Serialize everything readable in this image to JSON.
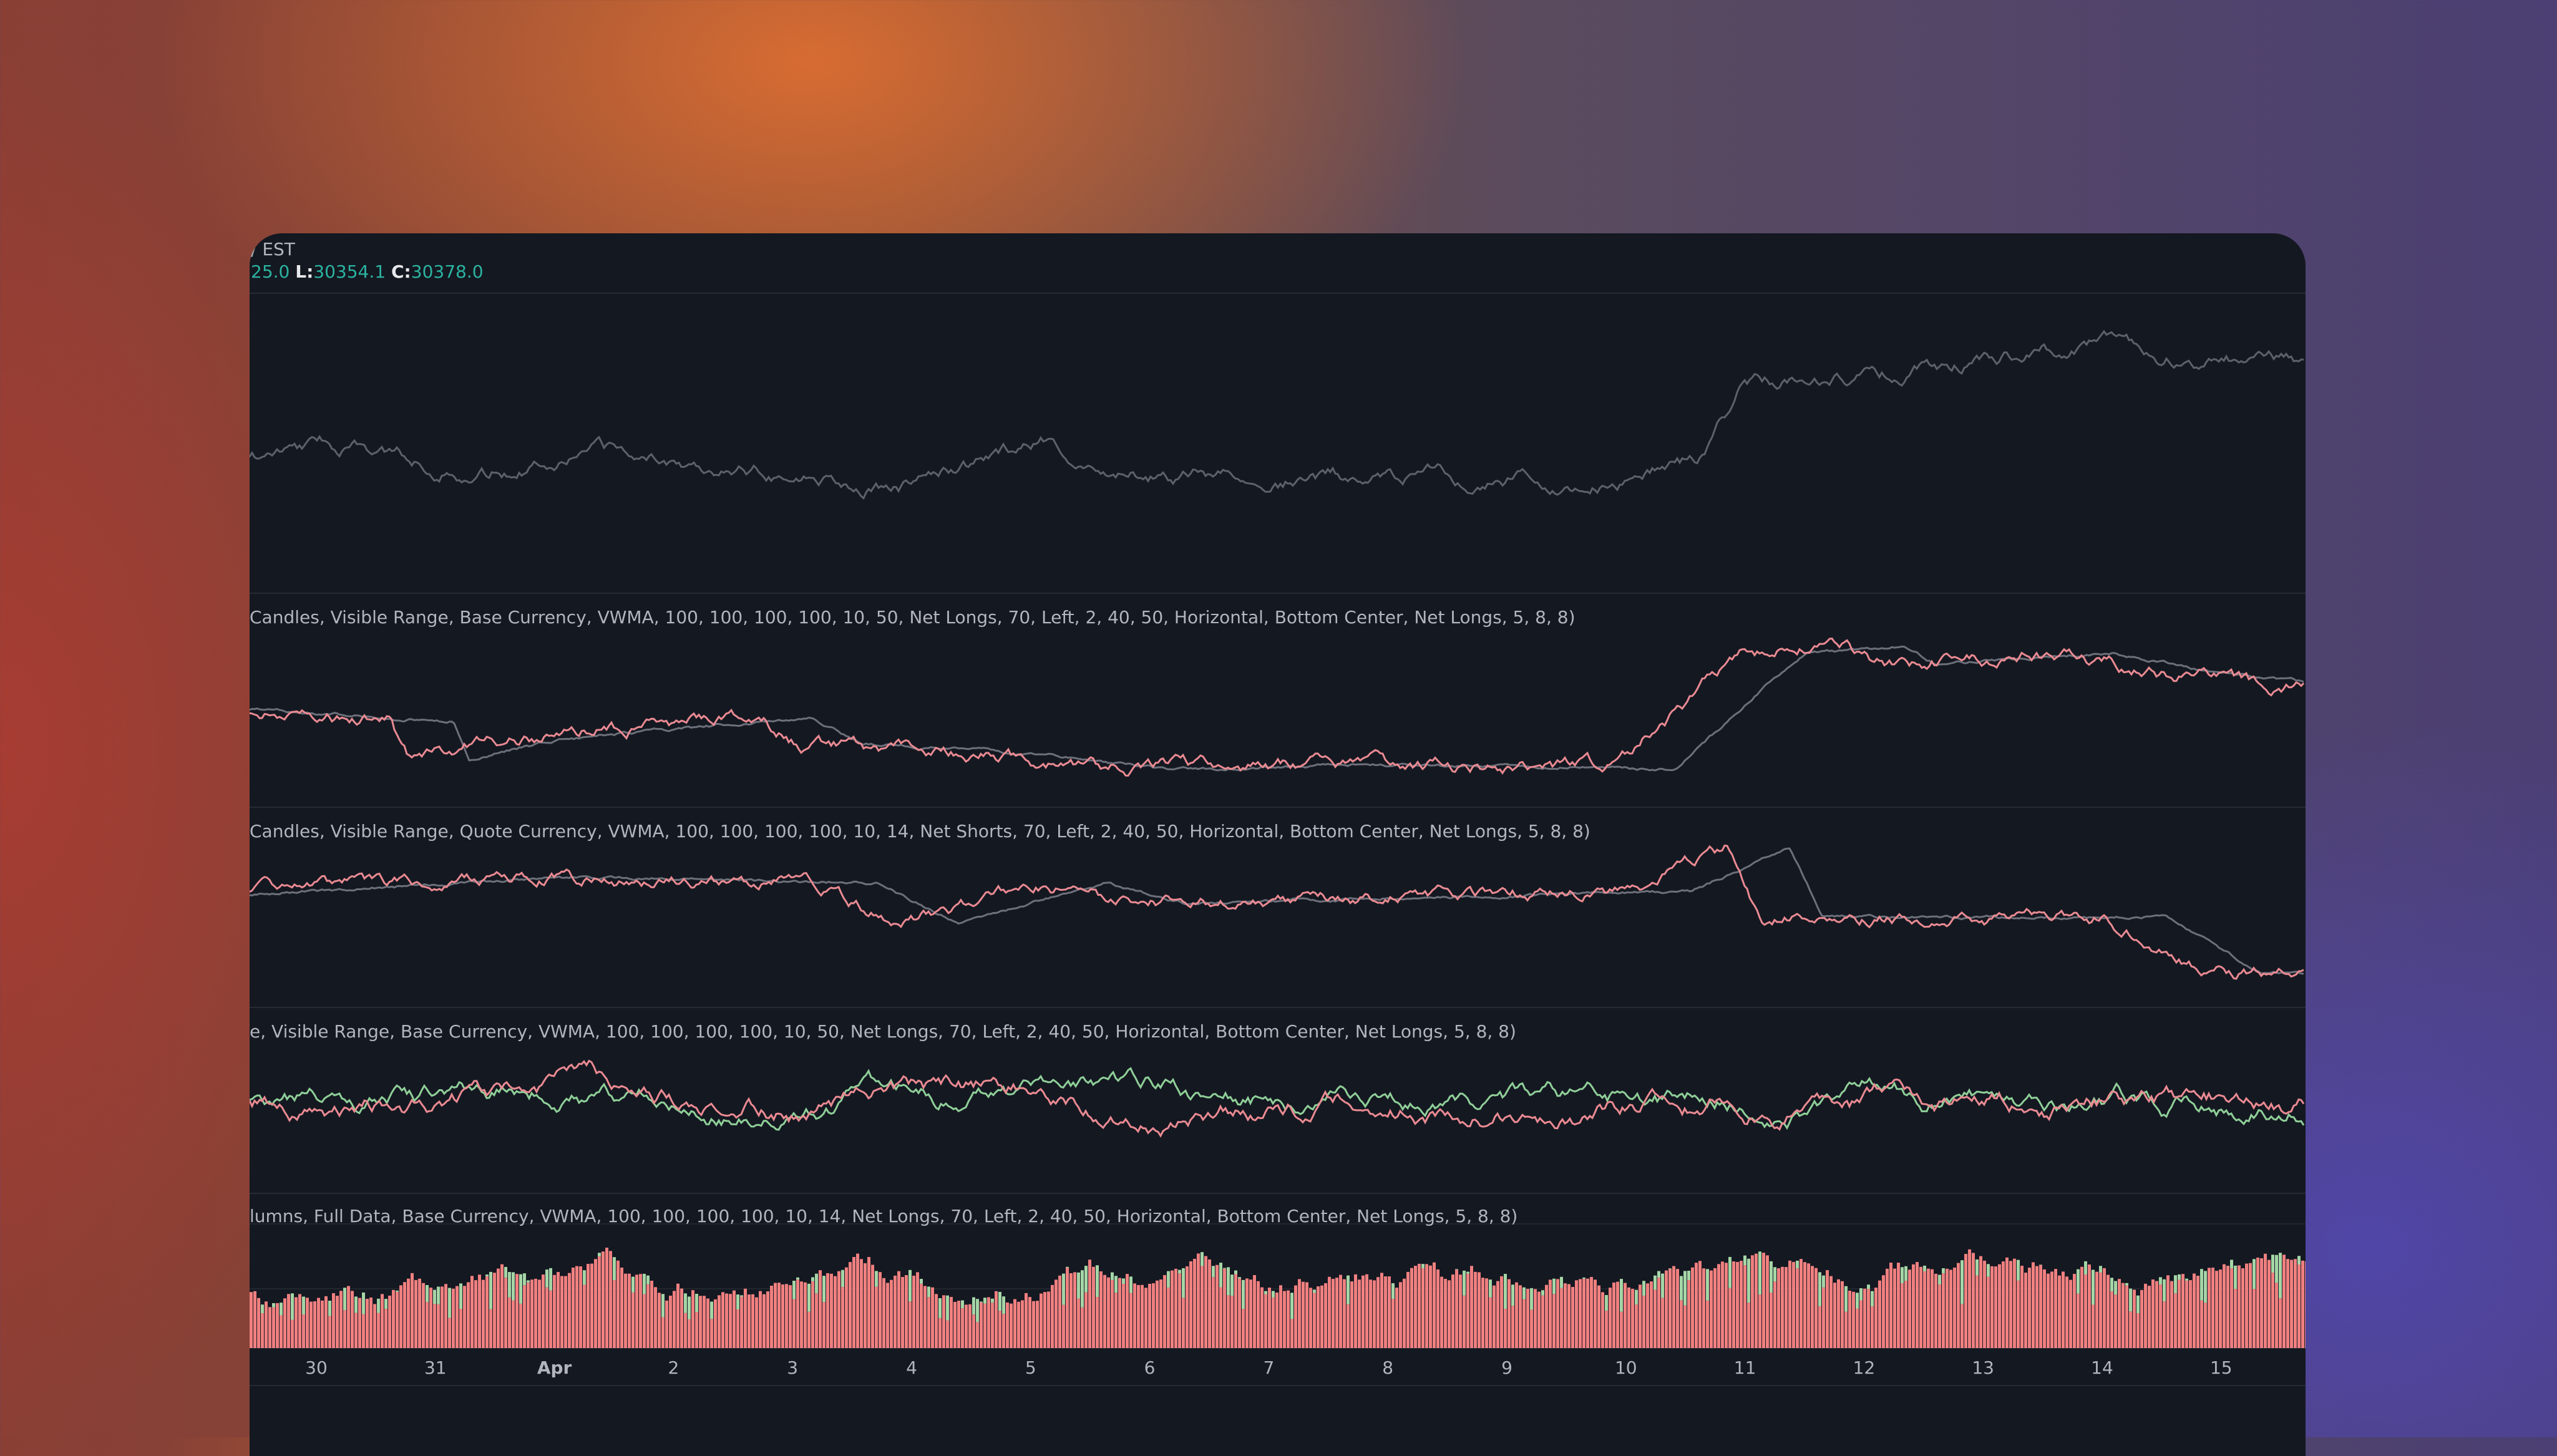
{
  "header": {
    "timezone": "/ EST",
    "high_partial": "25.0",
    "low_label": "L:",
    "low": "30354.1",
    "close_label": "C:",
    "close": "30378.0"
  },
  "indicators": [
    "Candles, Visible Range, Base Currency, VWMA, 100, 100, 100, 100, 10, 50, Net Longs, 70, Left, 2, 40, 50, Horizontal, Bottom Center, Net Longs, 5, 8, 8)",
    "Candles, Visible Range, Quote Currency, VWMA, 100, 100, 100, 100, 10, 14, Net Shorts, 70, Left, 2, 40, 50, Horizontal, Bottom Center, Net Longs, 5, 8, 8)",
    "e, Visible Range, Base Currency, VWMA, 100, 100, 100, 100, 10, 50, Net Longs, 70, Left, 2, 40, 50, Horizontal, Bottom Center, Net Longs, 5, 8, 8)",
    "lumns, Full Data, Base Currency, VWMA, 100, 100, 100, 100, 10, 14, Net Longs, 70, Left, 2, 40, 50, Horizontal, Bottom Center, Net Longs, 5, 8, 8)"
  ],
  "time_axis": [
    "30",
    "31",
    "Apr",
    "2",
    "3",
    "4",
    "5",
    "6",
    "7",
    "8",
    "9",
    "10",
    "11",
    "12",
    "13",
    "14",
    "15"
  ]
}
